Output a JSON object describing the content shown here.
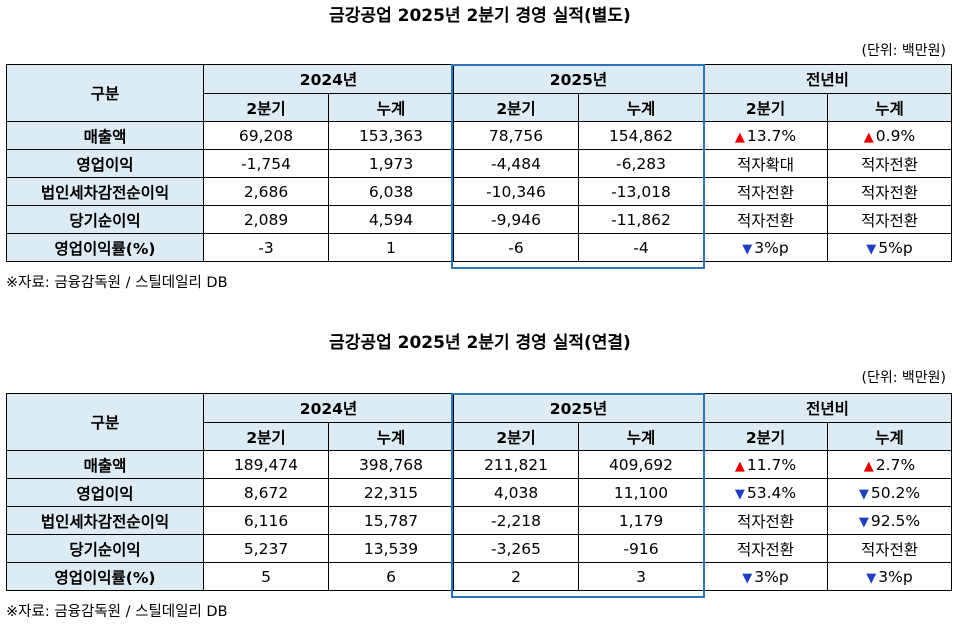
{
  "tables": [
    {
      "title": "금강공업 2025년 2분기 경영 실적(별도)",
      "unit": "(단위: 백만원)",
      "header": {
        "category": "구분",
        "group_2024": "2024년",
        "group_2025": "2025년",
        "group_yoy": "전년비",
        "q2": "2분기",
        "cum": "누계"
      },
      "rows": [
        {
          "label": "매출액",
          "v2024_q2": "69,208",
          "v2024_cum": "153,363",
          "v2025_q2": "78,756",
          "v2025_cum": "154,862",
          "yoy_q2": {
            "arrow": "▲",
            "dir": "up",
            "text": "13.7%"
          },
          "yoy_cum": {
            "arrow": "▲",
            "dir": "up",
            "text": "0.9%"
          }
        },
        {
          "label": "영업이익",
          "v2024_q2": "-1,754",
          "v2024_cum": "1,973",
          "v2025_q2": "-4,484",
          "v2025_cum": "-6,283",
          "yoy_q2": {
            "arrow": "",
            "dir": "none",
            "text": "적자확대"
          },
          "yoy_cum": {
            "arrow": "",
            "dir": "none",
            "text": "적자전환"
          }
        },
        {
          "label": "법인세차감전순이익",
          "v2024_q2": "2,686",
          "v2024_cum": "6,038",
          "v2025_q2": "-10,346",
          "v2025_cum": "-13,018",
          "yoy_q2": {
            "arrow": "",
            "dir": "none",
            "text": "적자전환"
          },
          "yoy_cum": {
            "arrow": "",
            "dir": "none",
            "text": "적자전환"
          }
        },
        {
          "label": "당기순이익",
          "v2024_q2": "2,089",
          "v2024_cum": "4,594",
          "v2025_q2": "-9,946",
          "v2025_cum": "-11,862",
          "yoy_q2": {
            "arrow": "",
            "dir": "none",
            "text": "적자전환"
          },
          "yoy_cum": {
            "arrow": "",
            "dir": "none",
            "text": "적자전환"
          }
        },
        {
          "label": "영업이익률(%)",
          "v2024_q2": "-3",
          "v2024_cum": "1",
          "v2025_q2": "-6",
          "v2025_cum": "-4",
          "yoy_q2": {
            "arrow": "▼",
            "dir": "down",
            "text": "3%p"
          },
          "yoy_cum": {
            "arrow": "▼",
            "dir": "down",
            "text": "5%p"
          }
        }
      ],
      "source": "※자료: 금융감독원 / 스틸데일리 DB"
    },
    {
      "title": "금강공업 2025년 2분기 경영 실적(연결)",
      "unit": "(단위: 백만원)",
      "header": {
        "category": "구분",
        "group_2024": "2024년",
        "group_2025": "2025년",
        "group_yoy": "전년비",
        "q2": "2분기",
        "cum": "누계"
      },
      "rows": [
        {
          "label": "매출액",
          "v2024_q2": "189,474",
          "v2024_cum": "398,768",
          "v2025_q2": "211,821",
          "v2025_cum": "409,692",
          "yoy_q2": {
            "arrow": "▲",
            "dir": "up",
            "text": "11.7%"
          },
          "yoy_cum": {
            "arrow": "▲",
            "dir": "up",
            "text": "2.7%"
          }
        },
        {
          "label": "영업이익",
          "v2024_q2": "8,672",
          "v2024_cum": "22,315",
          "v2025_q2": "4,038",
          "v2025_cum": "11,100",
          "yoy_q2": {
            "arrow": "▼",
            "dir": "down",
            "text": "53.4%"
          },
          "yoy_cum": {
            "arrow": "▼",
            "dir": "down",
            "text": "50.2%"
          }
        },
        {
          "label": "법인세차감전순이익",
          "v2024_q2": "6,116",
          "v2024_cum": "15,787",
          "v2025_q2": "-2,218",
          "v2025_cum": "1,179",
          "yoy_q2": {
            "arrow": "",
            "dir": "none",
            "text": "적자전환"
          },
          "yoy_cum": {
            "arrow": "▼",
            "dir": "down",
            "text": "92.5%"
          }
        },
        {
          "label": "당기순이익",
          "v2024_q2": "5,237",
          "v2024_cum": "13,539",
          "v2025_q2": "-3,265",
          "v2025_cum": "-916",
          "yoy_q2": {
            "arrow": "",
            "dir": "none",
            "text": "적자전환"
          },
          "yoy_cum": {
            "arrow": "",
            "dir": "none",
            "text": "적자전환"
          }
        },
        {
          "label": "영업이익률(%)",
          "v2024_q2": "5",
          "v2024_cum": "6",
          "v2025_q2": "2",
          "v2025_cum": "3",
          "yoy_q2": {
            "arrow": "▼",
            "dir": "down",
            "text": "3%p"
          },
          "yoy_cum": {
            "arrow": "▼",
            "dir": "down",
            "text": "3%p"
          }
        }
      ],
      "source": "※자료: 금융감독원 / 스틸데일리 DB"
    }
  ],
  "colors": {
    "header_bg": "#dcebf4",
    "highlight_border": "#2e75b6",
    "up": "#e00000",
    "down": "#1f3fbf"
  }
}
